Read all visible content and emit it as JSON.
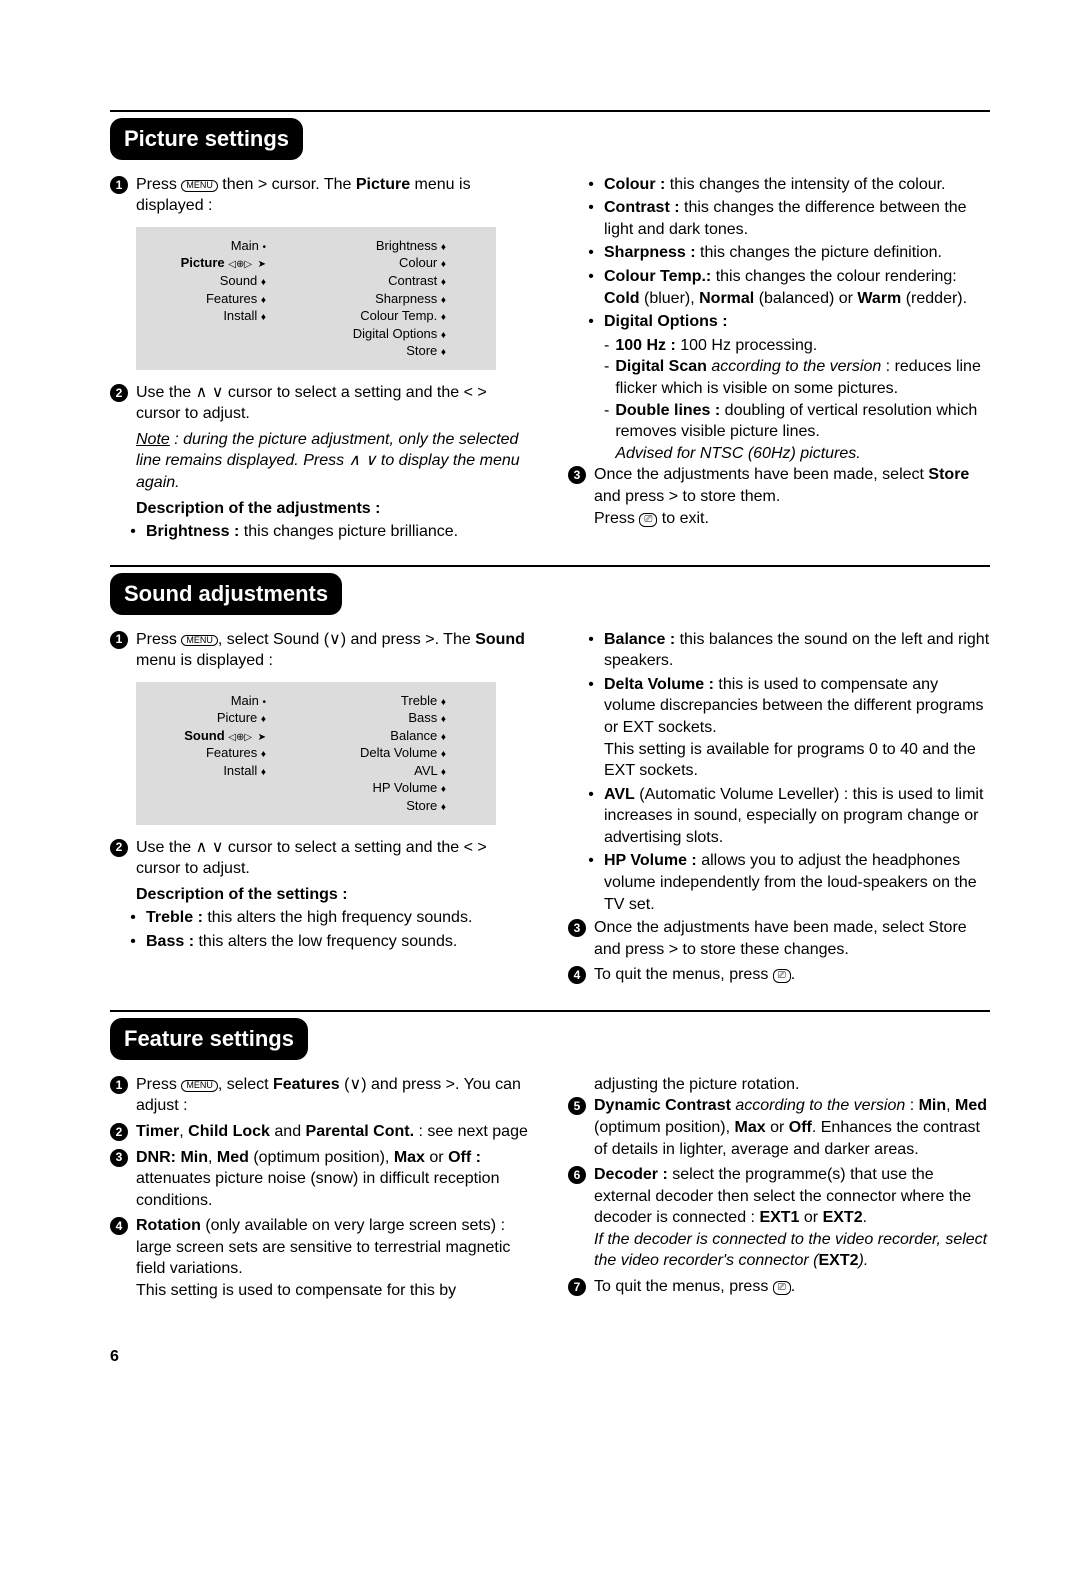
{
  "page_number": "6",
  "keys": {
    "menu_label": "MENU",
    "exit_label": "⎚"
  },
  "arrows": {
    "up": "∧",
    "down": "∨",
    "left": "<",
    "right": ">"
  },
  "sections": [
    {
      "title": "Picture settings",
      "menu": {
        "main_label": "Main",
        "left": [
          "Picture",
          "Sound",
          "Features",
          "Install"
        ],
        "left_bold_index": 0,
        "right": [
          "Brightness",
          "Colour",
          "Contrast",
          "Sharpness",
          "Colour Temp.",
          "Digital Options",
          "Store"
        ]
      },
      "left_blocks": [
        {
          "type": "numbered",
          "n": "1",
          "html": "Press <span class='key' data-bind='keys.menu_label'></span> then <span data-bind='arrows.right'></span> cursor. The <span class='b'>Picture</span> menu is displayed :"
        },
        {
          "type": "menu"
        },
        {
          "type": "numbered",
          "n": "2",
          "html": "Use the <span data-bind='arrows.up'></span> <span data-bind='arrows.down'></span> cursor to select a setting and the <span data-bind='arrows.left'></span> <span data-bind='arrows.right'></span> cursor to adjust."
        },
        {
          "type": "note",
          "html": "<span style='text-decoration:underline'>Note</span> : during the picture adjustment, only the selected line remains displayed. Press <span data-bind='arrows.up'></span> <span data-bind='arrows.down'></span> to display the menu again."
        },
        {
          "type": "subhead",
          "text": "Description of the adjustments :"
        },
        {
          "type": "bullet",
          "html": "<span class='b'>Brightness :</span> this changes picture brilliance."
        }
      ],
      "right_blocks": [
        {
          "type": "bullet",
          "html": "<span class='b'>Colour :</span> this changes the intensity of the colour."
        },
        {
          "type": "bullet",
          "html": "<span class='b'>Contrast :</span> this changes the difference between the light and dark tones."
        },
        {
          "type": "bullet",
          "html": "<span class='b'>Sharpness :</span> this changes the picture definition."
        },
        {
          "type": "bullet",
          "html": "<span class='b'>Colour Temp.:</span> this changes the colour rendering: <span class='b'>Cold</span> (bluer), <span class='b'>Normal</span> (balanced) or <span class='b'>Warm</span> (redder)."
        },
        {
          "type": "bullet",
          "html": "<span class='b'>Digital Options :</span>",
          "subs": [
            {
              "html": "<span class='b'>100 Hz :</span> 100 Hz processing."
            },
            {
              "html": "<span class='b'>Digital Scan</span> <span class='note'>according to the version</span> : reduces line flicker which is visible on some pictures."
            },
            {
              "html": "<span class='b'>Double lines :</span> doubling of vertical resolution which removes visible picture lines.<br><span class='note'>Advised for NTSC (60Hz) pictures.</span>"
            }
          ]
        },
        {
          "type": "numbered",
          "n": "3",
          "html": "Once the adjustments have been made, select <span class='b'>Store</span> and press <span data-bind='arrows.right'></span> to store them.<br>Press <span class='key-sq' data-bind='keys.exit_label'></span> to exit."
        }
      ]
    },
    {
      "title": "Sound adjustments",
      "menu": {
        "main_label": "Main",
        "left": [
          "Picture",
          "Sound",
          "Features",
          "Install"
        ],
        "left_bold_index": 1,
        "right": [
          "Treble",
          "Bass",
          "Balance",
          "Delta Volume",
          "AVL",
          "HP Volume",
          "Store"
        ]
      },
      "left_blocks": [
        {
          "type": "numbered",
          "n": "1",
          "html": "Press <span class='key' data-bind='keys.menu_label'></span>, select Sound (<span data-bind='arrows.down'></span>) and press <span data-bind='arrows.right'></span>. The <span class='b'>Sound</span> menu is displayed :"
        },
        {
          "type": "menu"
        },
        {
          "type": "numbered",
          "n": "2",
          "html": "Use the <span data-bind='arrows.up'></span> <span data-bind='arrows.down'></span> cursor to select a setting and the <span data-bind='arrows.left'></span> <span data-bind='arrows.right'></span> cursor to adjust."
        },
        {
          "type": "subhead",
          "text": "Description of the settings :"
        },
        {
          "type": "bullet",
          "html": "<span class='b'>Treble :</span> this alters the high frequency sounds."
        },
        {
          "type": "bullet",
          "html": "<span class='b'>Bass :</span> this alters the low frequency sounds."
        }
      ],
      "right_blocks": [
        {
          "type": "bullet",
          "html": "<span class='b'>Balance :</span> this balances the sound on the left and right speakers."
        },
        {
          "type": "bullet",
          "html": "<span class='b'>Delta Volume :</span> this is used to compensate any volume discrepancies between the different programs or EXT sockets.<br>This setting is available for programs 0 to 40 and the EXT sockets."
        },
        {
          "type": "bullet",
          "html": "<span class='b'>AVL</span> (Automatic Volume Leveller) : this is used to limit increases in sound, especially on program change or advertising slots."
        },
        {
          "type": "bullet",
          "html": "<span class='b'>HP Volume :</span> allows you to adjust the headphones volume independently from the loud-speakers on the TV set."
        },
        {
          "type": "numbered",
          "n": "3",
          "html": "Once the adjustments have been made, select Store and press <span data-bind='arrows.right'></span> to store these changes."
        },
        {
          "type": "numbered",
          "n": "4",
          "html": "To quit the menus, press <span class='key-sq' data-bind='keys.exit_label'></span>."
        }
      ]
    },
    {
      "title": "Feature settings",
      "menu": null,
      "left_blocks": [
        {
          "type": "numbered",
          "n": "1",
          "html": "Press <span class='key' data-bind='keys.menu_label'></span>, select <span class='b'>Features</span> (<span data-bind='arrows.down'></span>) and press <span data-bind='arrows.right'></span>. You can adjust :"
        },
        {
          "type": "numbered",
          "n": "2",
          "html": "<span class='b'>Timer</span>, <span class='b'>Child Lock</span> and <span class='b'>Parental Cont.</span> : see next page"
        },
        {
          "type": "numbered",
          "n": "3",
          "html": "<span class='b'>DNR: Min</span>, <span class='b'>Med</span> (optimum position), <span class='b'>Max</span> or <span class='b'>Off :</span> attenuates picture noise (snow) in difficult reception conditions."
        },
        {
          "type": "numbered",
          "n": "4",
          "html": "<span class='b'>Rotation</span> (only available on very large screen sets) : large screen sets are sensitive to terrestrial magnetic field variations.<br>This setting is used to compensate for this by"
        }
      ],
      "right_blocks": [
        {
          "type": "plain",
          "html": "adjusting the picture rotation."
        },
        {
          "type": "numbered",
          "n": "5",
          "html": "<span class='b'>Dynamic Contrast</span> <span class='note'>according to the version</span> : <span class='b'>Min</span>, <span class='b'>Med</span> (optimum position), <span class='b'>Max</span> or <span class='b'>Off</span>. Enhances the contrast of details in lighter, average and darker areas."
        },
        {
          "type": "numbered",
          "n": "6",
          "html": "<span class='b'>Decoder :</span> select the programme(s) that use the external decoder then select the connector where the decoder is connected : <span class='b'>EXT1</span> or <span class='b'>EXT2</span>.<br><span class='note'>If the decoder is connected to the video recorder, select the video recorder's connector (<span class='b' style='font-style:normal'>EXT2</span>).</span>"
        },
        {
          "type": "numbered",
          "n": "7",
          "html": "To quit the menus, press <span class='key-sq' data-bind='keys.exit_label'></span>."
        }
      ]
    }
  ]
}
